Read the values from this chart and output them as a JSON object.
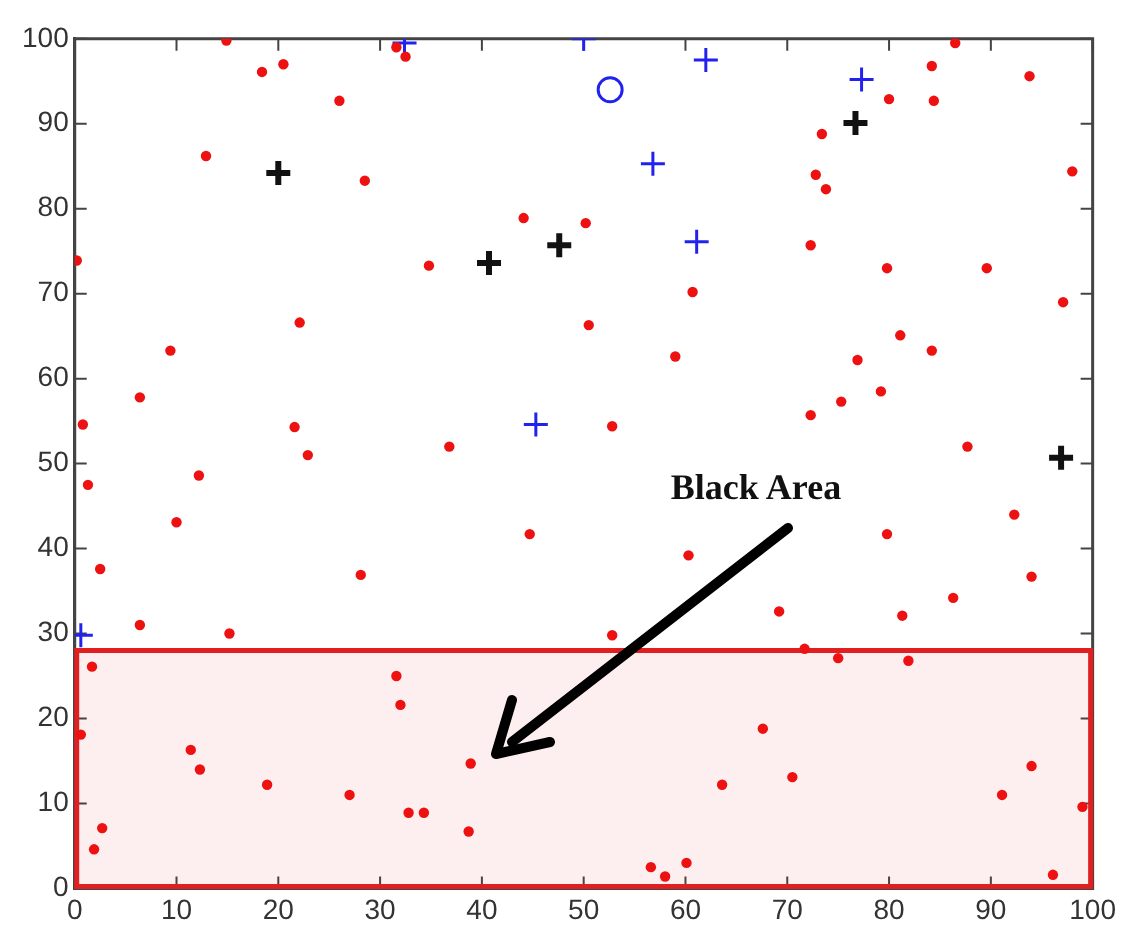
{
  "chart_data": {
    "type": "scatter",
    "xlim": [
      0,
      100
    ],
    "ylim": [
      0,
      100
    ],
    "xticks": [
      0,
      10,
      20,
      30,
      40,
      50,
      60,
      70,
      80,
      90,
      100
    ],
    "yticks": [
      0,
      10,
      20,
      30,
      40,
      50,
      60,
      70,
      80,
      90,
      100
    ],
    "grid": false,
    "legend": false,
    "series": [
      {
        "color": "#ee1111",
        "marker": "circle",
        "x": [
          0.2,
          0.8,
          9.4,
          6.4,
          12.9,
          14.9,
          18.4,
          20.5,
          26,
          28.5,
          22.1,
          21.6,
          22.9,
          36.8,
          34.8,
          31.6,
          32.5,
          44.1,
          50.2,
          50.5,
          12.2,
          1.3,
          2.5,
          10,
          6.4,
          15.2,
          28.1,
          44.7,
          1.7,
          0.6,
          11.4,
          12.3,
          18.9,
          27,
          31.6,
          32,
          32.8,
          34.3,
          38.9,
          38.7,
          2.7,
          1.9,
          52.8,
          60.3,
          56.6,
          58,
          60.1,
          63.6,
          67.6,
          69.2,
          70.5,
          71.7,
          75,
          79.8,
          81.3,
          81.9,
          86.3,
          92.3,
          94,
          94,
          91.1,
          99,
          96.1,
          52.8,
          60.7,
          59,
          72.3,
          73.4,
          72.8,
          73.8,
          79.8,
          89.6,
          76.9,
          81.1,
          84.2,
          75.3,
          79.2,
          72.3,
          87.7,
          97.1,
          98,
          80,
          84.2,
          84.4,
          86.5,
          93.8
        ],
        "values": [
          73.9,
          54.6,
          63.3,
          57.8,
          86.2,
          99.8,
          96.1,
          97,
          92.7,
          83.3,
          66.6,
          54.3,
          51,
          52,
          73.3,
          99,
          97.9,
          78.9,
          78.3,
          66.3,
          48.6,
          47.5,
          37.6,
          43.1,
          31,
          30,
          36.9,
          41.7,
          26.1,
          18.1,
          16.3,
          14,
          12.2,
          11,
          25,
          21.6,
          8.9,
          8.9,
          14.7,
          6.7,
          7.1,
          4.6,
          29.8,
          39.2,
          2.5,
          1.4,
          3,
          12.2,
          18.8,
          32.6,
          13.1,
          28.2,
          27.1,
          41.7,
          32.1,
          26.8,
          34.2,
          44,
          36.7,
          14.4,
          11,
          9.6,
          1.6,
          54.4,
          70.2,
          62.6,
          75.7,
          88.8,
          84,
          82.3,
          73,
          73,
          62.2,
          65.1,
          63.3,
          57.3,
          58.5,
          55.7,
          52,
          69,
          84.4,
          92.9,
          96.8,
          92.7,
          99.5,
          95.6
        ]
      },
      {
        "color": "#2222ee",
        "marker": "cross",
        "x": [
          50,
          62,
          77.3,
          56.8,
          61.1,
          45.3,
          32.4,
          0.6
        ],
        "values": [
          100,
          97.5,
          95.2,
          85.3,
          76.1,
          54.6,
          99.5,
          29.8
        ]
      },
      {
        "color": "#2222ee",
        "marker": "circle_open",
        "x": [
          52.6
        ],
        "values": [
          94
        ]
      },
      {
        "color": "#111111",
        "marker": "cross",
        "x": [
          76.7,
          96.9,
          47.6,
          20,
          40.7
        ],
        "values": [
          90.1,
          50.7,
          75.7,
          84.2,
          73.6
        ]
      }
    ],
    "bands": [
      {
        "axis": "y",
        "from": 0,
        "to": 28,
        "color": "#e02020"
      }
    ],
    "annotations": [
      "Black Area"
    ]
  }
}
